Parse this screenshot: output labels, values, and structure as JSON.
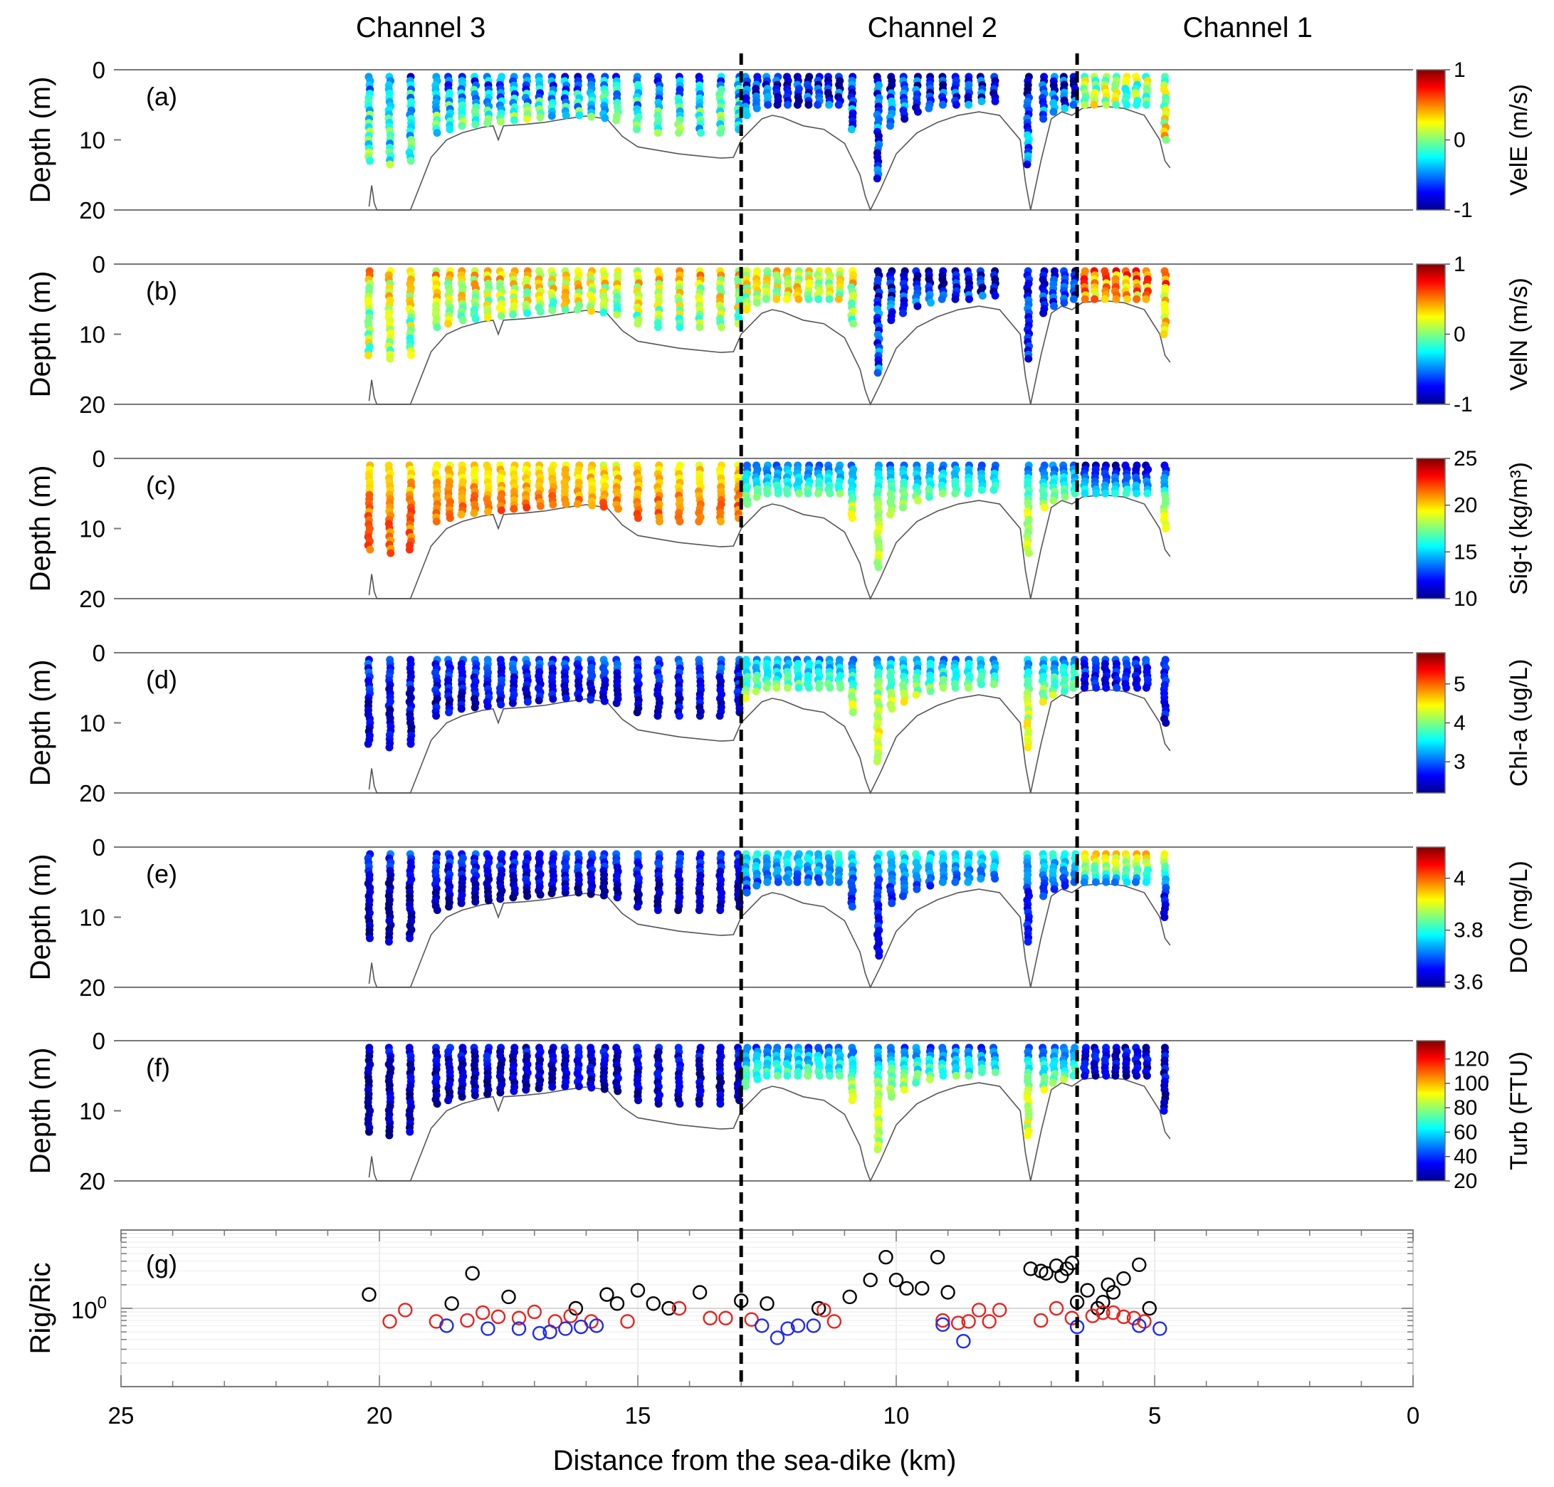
{
  "chart_data": {
    "type": "scatter",
    "x_axis": {
      "label": "Distance from the sea-dike (km)",
      "xlim": [
        25,
        0
      ],
      "reversed": true,
      "ticks": [
        25,
        20,
        15,
        10,
        5,
        0
      ],
      "tick_labels": [
        "25",
        "20",
        "15",
        "10",
        "5",
        "0"
      ]
    },
    "channels": [
      {
        "name": "Channel 3",
        "center_km": 19.2
      },
      {
        "name": "Channel 2",
        "center_km": 9.3
      },
      {
        "name": "Channel 1",
        "center_km": 3.2
      }
    ],
    "dividers_km": [
      13.0,
      6.5
    ],
    "depth_axis": {
      "ylabel": "Depth (m)",
      "ylim": [
        0,
        20
      ],
      "ticks": [
        0,
        10,
        20
      ],
      "tick_labels": [
        "0",
        "10",
        "20"
      ]
    },
    "bathymetry_km": [
      20.2,
      20.15,
      20.1,
      20.05,
      20.0,
      19.4,
      19.0,
      18.7,
      18.4,
      18.0,
      17.8,
      17.7,
      17.6,
      17.2,
      16.8,
      16.4,
      16.0,
      15.6,
      15.3,
      15.0,
      14.6,
      14.2,
      13.8,
      13.4,
      13.15,
      13.0,
      12.6,
      12.4,
      12.2,
      11.8,
      11.4,
      11.0,
      10.7,
      10.6,
      10.5,
      10.3,
      10.0,
      9.6,
      9.2,
      8.8,
      8.4,
      8.0,
      7.6,
      7.5,
      7.4,
      7.2,
      7.0,
      6.8,
      6.6,
      6.4,
      6.0,
      5.6,
      5.2,
      4.9,
      4.8,
      4.7
    ],
    "bathymetry_depth": [
      19.5,
      16.5,
      19.0,
      20.0,
      20.0,
      20.0,
      12.5,
      10.0,
      9.0,
      8.2,
      8.0,
      10.0,
      8.0,
      7.8,
      7.5,
      7.0,
      6.6,
      7.0,
      9.5,
      11.0,
      11.5,
      12.0,
      12.3,
      12.6,
      12.5,
      10.0,
      7.0,
      6.5,
      6.8,
      8.0,
      8.5,
      10.5,
      15.0,
      18.0,
      20.0,
      17.0,
      12.0,
      9.0,
      7.5,
      6.5,
      6.0,
      6.5,
      10.0,
      16.0,
      20.0,
      13.0,
      7.0,
      6.0,
      6.5,
      5.5,
      5.2,
      5.5,
      6.5,
      10.0,
      13.0,
      14.0
    ],
    "profiles_km": [
      20.2,
      19.8,
      19.4,
      18.9,
      18.65,
      18.4,
      18.15,
      17.9,
      17.65,
      17.4,
      17.15,
      16.9,
      16.65,
      16.4,
      16.15,
      15.9,
      15.65,
      15.4,
      15.0,
      14.6,
      14.2,
      13.8,
      13.4,
      13.05,
      12.9,
      12.7,
      12.5,
      12.3,
      12.1,
      11.9,
      11.7,
      11.5,
      11.3,
      11.1,
      10.85,
      10.35,
      10.1,
      9.85,
      9.6,
      9.35,
      9.1,
      8.85,
      8.6,
      8.35,
      8.1,
      7.45,
      7.15,
      6.95,
      6.75,
      6.55,
      6.35,
      6.15,
      5.95,
      5.75,
      5.55,
      5.35,
      5.15,
      4.8
    ],
    "profiles_bottom_m": [
      13.0,
      13.5,
      13.0,
      9.0,
      8.5,
      8.0,
      7.8,
      7.6,
      7.4,
      7.2,
      7.0,
      6.8,
      6.6,
      6.5,
      6.5,
      6.7,
      6.9,
      7.2,
      8.5,
      9.0,
      9.0,
      9.0,
      9.0,
      8.5,
      6.5,
      5.5,
      5.0,
      5.0,
      5.0,
      5.0,
      5.0,
      5.0,
      5.0,
      5.0,
      8.5,
      15.5,
      8.0,
      7.0,
      6.0,
      5.5,
      5.0,
      5.0,
      5.0,
      4.5,
      4.5,
      13.5,
      7.0,
      6.0,
      5.5,
      5.0,
      5.0,
      5.0,
      5.0,
      5.0,
      5.0,
      5.0,
      5.0,
      10.0
    ],
    "panels": [
      {
        "id": "a",
        "tag": "(a)",
        "variable": "VelE",
        "colorbar_label": "VelE (m/s)",
        "clim": [
          -1,
          1
        ],
        "colorbar_ticks": [
          1,
          0,
          -1
        ],
        "colorbar_tick_labels": [
          "1",
          "0",
          "-1"
        ],
        "seg_edges_km": [
          13.0,
          6.5
        ],
        "surf_mean": [
          -0.55,
          -0.75,
          0.0
        ],
        "deep_mean": [
          -0.15,
          -0.6,
          0.15
        ],
        "noise": 0.35
      },
      {
        "id": "b",
        "tag": "(b)",
        "variable": "VelN",
        "colorbar_label": "VelN (m/s)",
        "clim": [
          -1,
          1
        ],
        "colorbar_ticks": [
          1,
          0,
          -1
        ],
        "colorbar_tick_labels": [
          "1",
          "0",
          "-1"
        ],
        "seg_edges_km": [
          13.0,
          10.5,
          6.5
        ],
        "surf_mean": [
          0.3,
          0.25,
          -0.9,
          0.55
        ],
        "deep_mean": [
          0.05,
          0.05,
          -0.6,
          0.25
        ],
        "noise": 0.3
      },
      {
        "id": "c",
        "tag": "(c)",
        "variable": "Sig-t",
        "colorbar_label": "Sig-t (kg/m³)",
        "clim": [
          10,
          25
        ],
        "colorbar_ticks": [
          25,
          20,
          15,
          10
        ],
        "colorbar_tick_labels": [
          "25",
          "20",
          "15",
          "10"
        ],
        "seg_edges_km": [
          13.0,
          6.5
        ],
        "surf_mean": [
          19.5,
          13.5,
          11.0
        ],
        "deep_mean": [
          21.5,
          18.5,
          18.5
        ],
        "noise": 1.0
      },
      {
        "id": "d",
        "tag": "(d)",
        "variable": "Chl-a",
        "colorbar_label": "Chl-a (ug/L)",
        "clim": [
          2.2,
          5.8
        ],
        "colorbar_ticks": [
          5,
          4,
          3
        ],
        "colorbar_tick_labels": [
          "5",
          "4",
          "3"
        ],
        "seg_edges_km": [
          13.0,
          6.5
        ],
        "surf_mean": [
          2.9,
          3.2,
          2.8
        ],
        "deep_mean": [
          2.5,
          4.3,
          2.6
        ],
        "noise": 0.3
      },
      {
        "id": "e",
        "tag": "(e)",
        "variable": "DO",
        "colorbar_label": "DO (mg/L)",
        "clim": [
          3.58,
          4.12
        ],
        "colorbar_ticks": [
          4.0,
          3.8,
          3.6
        ],
        "colorbar_tick_labels": [
          "4",
          "3.8",
          "3.6"
        ],
        "seg_edges_km": [
          13.0,
          6.5
        ],
        "surf_mean": [
          3.68,
          3.78,
          3.95
        ],
        "deep_mean": [
          3.6,
          3.66,
          3.64
        ],
        "noise": 0.04
      },
      {
        "id": "f",
        "tag": "(f)",
        "variable": "Turb",
        "colorbar_label": "Turb (FTU)",
        "clim": [
          20,
          135
        ],
        "colorbar_ticks": [
          120,
          100,
          80,
          60,
          40,
          20
        ],
        "colorbar_tick_labels": [
          "120",
          "100",
          "80",
          "60",
          "40",
          "20"
        ],
        "seg_edges_km": [
          13.0,
          6.5
        ],
        "surf_mean": [
          32,
          45,
          30
        ],
        "deep_mean": [
          26,
          85,
          30
        ],
        "noise": 10
      }
    ],
    "ri_panel": {
      "tag": "(g)",
      "ylabel": "Rig/Ric",
      "scale": "log",
      "ylim": [
        0.1,
        10
      ],
      "ytick_label": "10^0",
      "series": [
        {
          "name": "black",
          "color": "#000000",
          "x": [
            20.2,
            18.6,
            18.2,
            17.5,
            16.2,
            15.6,
            15.4,
            15.0,
            14.7,
            14.4,
            13.8,
            13.0,
            12.5,
            11.5,
            10.9,
            10.5,
            10.2,
            10.0,
            9.8,
            9.5,
            9.2,
            9.0,
            7.4,
            7.2,
            7.1,
            6.9,
            6.8,
            6.7,
            6.6,
            6.5,
            6.3,
            6.1,
            6.0,
            5.9,
            5.8,
            5.6,
            5.3,
            5.1
          ],
          "y": [
            1.5,
            1.15,
            2.8,
            1.4,
            1.0,
            1.5,
            1.15,
            1.7,
            1.15,
            1.0,
            1.6,
            1.25,
            1.15,
            1.0,
            1.4,
            2.3,
            4.5,
            2.3,
            1.8,
            1.8,
            4.5,
            1.6,
            3.2,
            3.0,
            2.8,
            3.5,
            2.6,
            3.2,
            3.8,
            1.2,
            1.7,
            1.0,
            1.2,
            2.0,
            1.6,
            2.4,
            3.6,
            1.0
          ]
        },
        {
          "name": "red",
          "color": "#e8231f",
          "x": [
            19.8,
            19.5,
            18.9,
            18.3,
            18.0,
            17.7,
            17.3,
            17.0,
            16.6,
            16.3,
            15.9,
            15.2,
            14.2,
            13.6,
            13.3,
            12.8,
            11.4,
            11.2,
            9.1,
            8.8,
            8.6,
            8.4,
            8.2,
            8.0,
            7.2,
            6.9,
            6.6,
            6.2,
            6.0,
            5.8,
            5.6,
            5.4,
            5.2
          ],
          "y": [
            0.68,
            0.95,
            0.68,
            0.7,
            0.88,
            0.78,
            0.75,
            0.9,
            0.68,
            0.8,
            0.68,
            0.68,
            1.0,
            0.75,
            0.75,
            0.72,
            0.95,
            0.68,
            0.7,
            0.65,
            0.68,
            0.95,
            0.68,
            0.95,
            0.7,
            1.0,
            0.75,
            0.8,
            0.88,
            0.88,
            0.78,
            0.75,
            0.68
          ]
        },
        {
          "name": "blue",
          "color": "#1f2bea",
          "x": [
            18.7,
            17.9,
            17.3,
            16.9,
            16.7,
            16.4,
            16.1,
            15.8,
            12.6,
            12.3,
            12.1,
            11.9,
            11.6,
            9.1,
            8.7,
            6.5,
            5.3,
            4.9
          ],
          "y": [
            0.6,
            0.55,
            0.55,
            0.48,
            0.5,
            0.55,
            0.58,
            0.6,
            0.6,
            0.42,
            0.55,
            0.6,
            0.6,
            0.62,
            0.38,
            0.58,
            0.6,
            0.55
          ]
        }
      ]
    }
  }
}
